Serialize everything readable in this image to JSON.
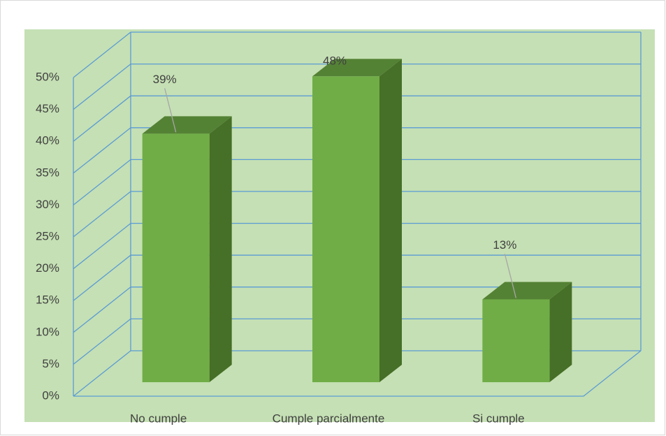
{
  "chart_data": {
    "type": "bar3d",
    "categories": [
      "No cumple",
      "Cumple parcialmente",
      "Si cumple"
    ],
    "values": [
      39,
      48,
      13
    ],
    "value_labels": [
      "39%",
      "48%",
      "13%"
    ],
    "color": "#70ad47",
    "ylim": [
      0,
      50
    ],
    "yticks": [
      {
        "value": 0,
        "label": "0%"
      },
      {
        "value": 5,
        "label": "5%"
      },
      {
        "value": 10,
        "label": "10%"
      },
      {
        "value": 15,
        "label": "15%"
      },
      {
        "value": 20,
        "label": "20%"
      },
      {
        "value": 25,
        "label": "25%"
      },
      {
        "value": 30,
        "label": "30%"
      },
      {
        "value": 35,
        "label": "35%"
      },
      {
        "value": 40,
        "label": "40%"
      },
      {
        "value": 45,
        "label": "45%"
      },
      {
        "value": 50,
        "label": "50%"
      }
    ],
    "grid": true
  }
}
